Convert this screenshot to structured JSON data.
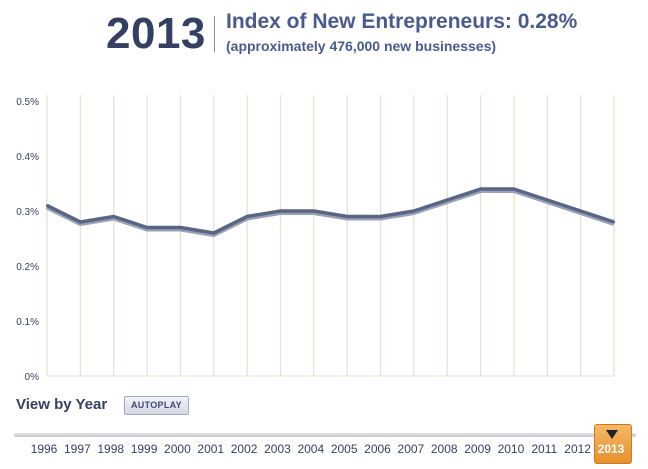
{
  "header": {
    "year": "2013",
    "title": "Index of New Entrepreneurs: 0.28%",
    "subtitle": "(approximately 476,000 new businesses)"
  },
  "controls": {
    "view_label": "View by Year",
    "autoplay_label": "AUTOPLAY"
  },
  "timeline": {
    "selected": "2013",
    "years": [
      "1996",
      "1997",
      "1998",
      "1999",
      "2000",
      "2001",
      "2002",
      "2003",
      "2004",
      "2005",
      "2006",
      "2007",
      "2008",
      "2009",
      "2010",
      "2011",
      "2012",
      "2013"
    ]
  },
  "colors": {
    "line": "#5a6585",
    "grid": "#e6dfcc",
    "accent": "#e7902b",
    "text": "#353f63"
  },
  "chart_data": {
    "type": "line",
    "title": "Index of New Entrepreneurs: 0.28%",
    "x": [
      "1996",
      "1997",
      "1998",
      "1999",
      "2000",
      "2001",
      "2002",
      "2003",
      "2004",
      "2005",
      "2006",
      "2007",
      "2008",
      "2009",
      "2010",
      "2011",
      "2012",
      "2013"
    ],
    "series": [
      {
        "name": "Index of New Entrepreneurs",
        "values": [
          0.31,
          0.28,
          0.29,
          0.27,
          0.27,
          0.26,
          0.29,
          0.3,
          0.3,
          0.29,
          0.29,
          0.3,
          0.32,
          0.34,
          0.34,
          0.32,
          0.3,
          0.28
        ]
      }
    ],
    "ylim": [
      0,
      0.5
    ],
    "yticks": [
      "0%",
      "0.1%",
      "0.2%",
      "0.3%",
      "0.4%",
      "0.5%"
    ],
    "xlabel": "",
    "ylabel": "",
    "grid": true
  }
}
